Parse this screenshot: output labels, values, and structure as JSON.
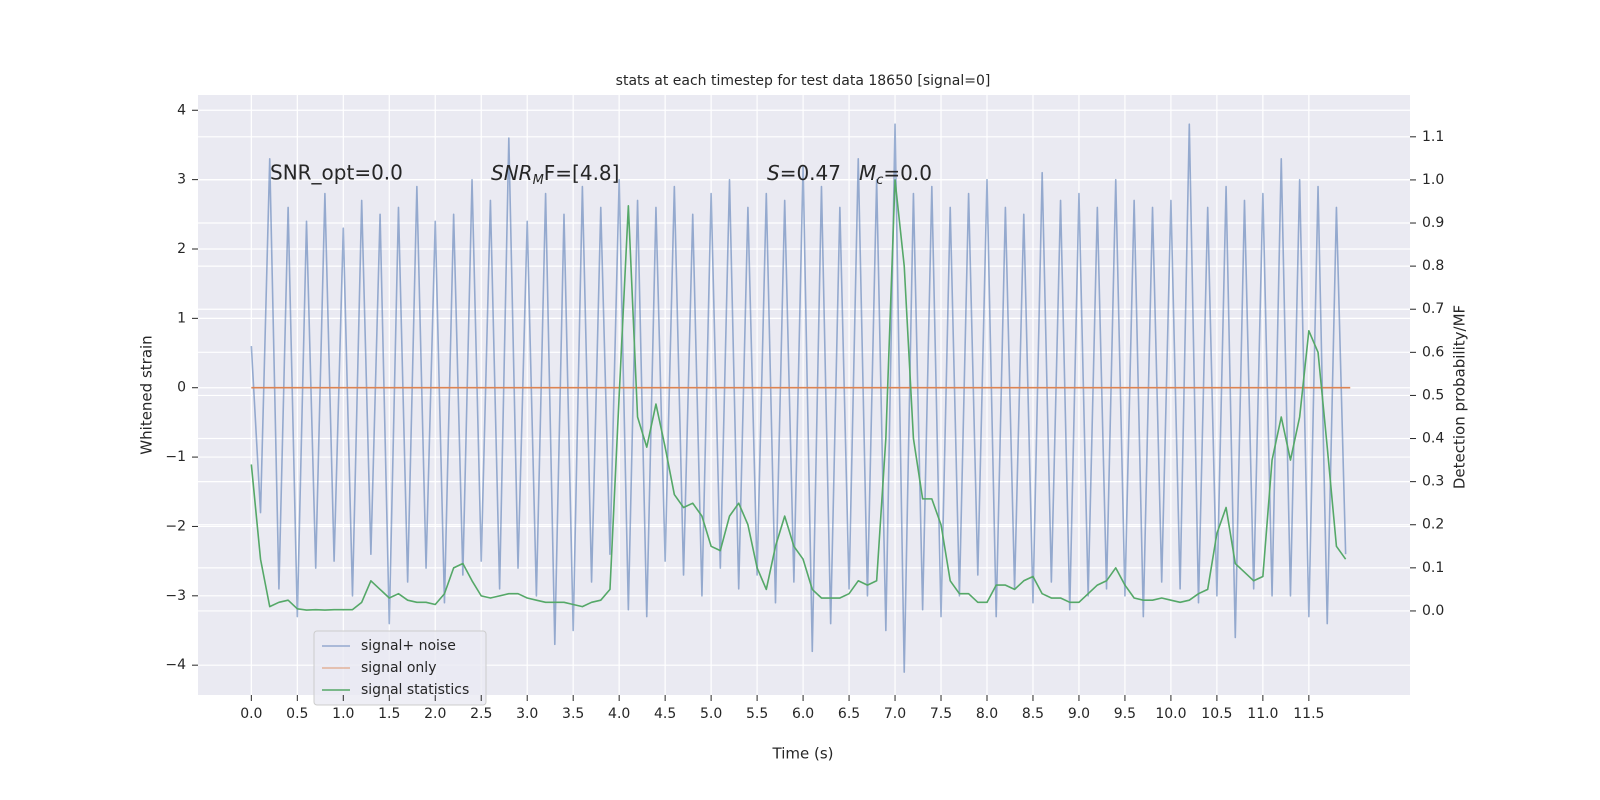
{
  "chart_data": {
    "type": "line",
    "title": "stats at each timestep for test data 18650 [signal=0]",
    "xlabel": "Time (s)",
    "ylabel": "Whitened strain",
    "y2label": "Detection probability/MF",
    "annotations": [
      [
        "SNR_opt=0.0"
      ],
      [
        "SNR",
        "M",
        "F=[4.8]"
      ],
      [
        "S",
        "=0.47"
      ],
      [
        "M",
        "c",
        "=0.0"
      ]
    ],
    "grid": true,
    "legend": "lower left",
    "xlim": [
      -0.58,
      12.6
    ],
    "ylim": [
      -4.43,
      4.22
    ],
    "y2lim": [
      -0.195,
      1.197
    ],
    "xticks": [
      {
        "value": 0,
        "label": "0.0"
      },
      {
        "value": 0.5,
        "label": "0.5"
      },
      {
        "value": 1,
        "label": "1.0"
      },
      {
        "value": 1.5,
        "label": "1.5"
      },
      {
        "value": 2,
        "label": "2.0"
      },
      {
        "value": 2.5,
        "label": "2.5"
      },
      {
        "value": 3,
        "label": "3.0"
      },
      {
        "value": 3.5,
        "label": "3.5"
      },
      {
        "value": 4,
        "label": "4.0"
      },
      {
        "value": 4.5,
        "label": "4.5"
      },
      {
        "value": 5,
        "label": "5.0"
      },
      {
        "value": 5.5,
        "label": "5.5"
      },
      {
        "value": 6,
        "label": "6.0"
      },
      {
        "value": 6.5,
        "label": "6.5"
      },
      {
        "value": 7,
        "label": "7.0"
      },
      {
        "value": 7.5,
        "label": "7.5"
      },
      {
        "value": 8,
        "label": "8.0"
      },
      {
        "value": 8.5,
        "label": "8.5"
      },
      {
        "value": 9,
        "label": "9.0"
      },
      {
        "value": 9.5,
        "label": "9.5"
      },
      {
        "value": 10,
        "label": "10.0"
      },
      {
        "value": 10.5,
        "label": "10.5"
      },
      {
        "value": 11,
        "label": "11.0"
      },
      {
        "value": 11.5,
        "label": "11.5"
      }
    ],
    "yticks": [
      {
        "value": -4,
        "label": "−4"
      },
      {
        "value": -3,
        "label": "−3"
      },
      {
        "value": -2,
        "label": "−2"
      },
      {
        "value": -1,
        "label": "−1"
      },
      0,
      1,
      2,
      3,
      4
    ],
    "y2ticks": [
      {
        "value": 0,
        "label": "0.0"
      },
      {
        "value": 0.1,
        "label": "0.1"
      },
      {
        "value": 0.2,
        "label": "0.2"
      },
      {
        "value": 0.3,
        "label": "0.3"
      },
      {
        "value": 0.4,
        "label": "0.4"
      },
      {
        "value": 0.5,
        "label": "0.5"
      },
      {
        "value": 0.6,
        "label": "0.6"
      },
      {
        "value": 0.7,
        "label": "0.7"
      },
      {
        "value": 0.8,
        "label": "0.8"
      },
      {
        "value": 0.9,
        "label": "0.9"
      },
      {
        "value": 1,
        "label": "1.0"
      },
      {
        "value": 1.1,
        "label": "1.1"
      }
    ],
    "series": [
      {
        "name": "signal+ noise",
        "color": "#4c72b0",
        "x": [
          0,
          0.1,
          0.2,
          0.3,
          0.4,
          0.5,
          0.6,
          0.7,
          0.8,
          0.9,
          1,
          1.1,
          1.2,
          1.3,
          1.4,
          1.5,
          1.6,
          1.7,
          1.8,
          1.9,
          2,
          2.1,
          2.2,
          2.3,
          2.4,
          2.5,
          2.6,
          2.7,
          2.8,
          2.9,
          3,
          3.1,
          3.2,
          3.3,
          3.4,
          3.5,
          3.6,
          3.7,
          3.8,
          3.9,
          4,
          4.1,
          4.2,
          4.3,
          4.4,
          4.5,
          4.6,
          4.7,
          4.8,
          4.9,
          5,
          5.1,
          5.2,
          5.3,
          5.4,
          5.5,
          5.6,
          5.7,
          5.8,
          5.9,
          6,
          6.1,
          6.2,
          6.3,
          6.4,
          6.5,
          6.6,
          6.7,
          6.8,
          6.9,
          7,
          7.1,
          7.2,
          7.3,
          7.4,
          7.5,
          7.6,
          7.7,
          7.8,
          7.9,
          8,
          8.1,
          8.2,
          8.3,
          8.4,
          8.5,
          8.6,
          8.7,
          8.8,
          8.9,
          9,
          9.1,
          9.2,
          9.3,
          9.4,
          9.5,
          9.6,
          9.7,
          9.8,
          9.9,
          10,
          10.1,
          10.2,
          10.3,
          10.4,
          10.5,
          10.6,
          10.7,
          10.8,
          10.9,
          11,
          11.1,
          11.2,
          11.3,
          11.4,
          11.5,
          11.6,
          11.7,
          11.8,
          11.9
        ],
        "values": [
          0.6,
          -1.8,
          3.3,
          -2.9,
          2.6,
          -3.3,
          2.4,
          -2.6,
          2.8,
          -2.5,
          2.3,
          -3.0,
          2.7,
          -2.4,
          2.5,
          -3.4,
          2.6,
          -2.8,
          2.9,
          -2.6,
          2.4,
          -3.1,
          2.5,
          -2.7,
          3.0,
          -2.5,
          2.7,
          -2.9,
          3.6,
          -2.6,
          2.4,
          -3.0,
          2.8,
          -3.7,
          2.5,
          -3.5,
          2.9,
          -2.8,
          2.6,
          -2.4,
          3.0,
          -3.2,
          2.7,
          -3.3,
          2.6,
          -2.5,
          2.9,
          -2.7,
          2.5,
          -3.0,
          2.8,
          -2.6,
          3.0,
          -2.9,
          2.6,
          -2.7,
          2.8,
          -3.1,
          2.7,
          -2.8,
          3.2,
          -3.8,
          2.9,
          -3.4,
          2.6,
          -2.9,
          3.3,
          -3.0,
          3.0,
          -3.5,
          3.8,
          -4.1,
          2.8,
          -3.2,
          2.9,
          -3.3,
          2.6,
          -3.0,
          2.8,
          -2.7,
          3.0,
          -3.3,
          2.6,
          -2.9,
          2.5,
          -3.1,
          3.1,
          -2.8,
          2.7,
          -3.2,
          2.8,
          -3.0,
          2.6,
          -2.9,
          3.0,
          -3.0,
          2.7,
          -3.3,
          2.6,
          -2.8,
          2.7,
          -2.9,
          3.8,
          -3.1,
          2.6,
          -3.0,
          2.9,
          -3.6,
          2.7,
          -2.9,
          2.8,
          -3.0,
          3.3,
          -3.0,
          3.0,
          -3.3,
          2.9,
          -3.4,
          2.6,
          -2.4
        ]
      },
      {
        "name": "signal only",
        "color": "#dd8452",
        "x": [
          0,
          11.95
        ],
        "values": [
          0,
          0
        ]
      },
      {
        "name": "signal statistics",
        "color": "#55a868",
        "axis": "y2",
        "x": [
          0,
          0.1,
          0.2,
          0.3,
          0.4,
          0.5,
          0.6,
          0.7,
          0.8,
          0.9,
          1,
          1.1,
          1.2,
          1.3,
          1.4,
          1.5,
          1.6,
          1.7,
          1.8,
          1.9,
          2,
          2.1,
          2.2,
          2.3,
          2.4,
          2.5,
          2.6,
          2.7,
          2.8,
          2.9,
          3,
          3.1,
          3.2,
          3.3,
          3.4,
          3.5,
          3.6,
          3.7,
          3.8,
          3.9,
          4,
          4.1,
          4.2,
          4.3,
          4.4,
          4.5,
          4.6,
          4.7,
          4.8,
          4.9,
          5,
          5.1,
          5.2,
          5.3,
          5.4,
          5.5,
          5.6,
          5.7,
          5.8,
          5.9,
          6,
          6.1,
          6.2,
          6.3,
          6.4,
          6.5,
          6.6,
          6.7,
          6.8,
          6.9,
          7,
          7.1,
          7.2,
          7.3,
          7.4,
          7.5,
          7.6,
          7.7,
          7.8,
          7.9,
          8,
          8.1,
          8.2,
          8.3,
          8.4,
          8.5,
          8.6,
          8.7,
          8.8,
          8.9,
          9,
          9.1,
          9.2,
          9.3,
          9.4,
          9.5,
          9.6,
          9.7,
          9.8,
          9.9,
          10,
          10.1,
          10.2,
          10.3,
          10.4,
          10.5,
          10.6,
          10.7,
          10.8,
          10.9,
          11,
          11.1,
          11.2,
          11.3,
          11.4,
          11.5,
          11.6,
          11.7,
          11.8,
          11.9
        ],
        "values": [
          0.34,
          0.12,
          0.01,
          0.02,
          0.025,
          0.005,
          0.002,
          0.003,
          0.002,
          0.003,
          0.003,
          0.003,
          0.02,
          0.07,
          0.05,
          0.03,
          0.04,
          0.025,
          0.02,
          0.02,
          0.015,
          0.04,
          0.1,
          0.11,
          0.07,
          0.035,
          0.03,
          0.035,
          0.04,
          0.04,
          0.03,
          0.025,
          0.02,
          0.02,
          0.02,
          0.015,
          0.01,
          0.02,
          0.025,
          0.05,
          0.5,
          0.94,
          0.45,
          0.38,
          0.48,
          0.38,
          0.27,
          0.24,
          0.25,
          0.22,
          0.15,
          0.14,
          0.22,
          0.25,
          0.2,
          0.1,
          0.05,
          0.15,
          0.22,
          0.15,
          0.12,
          0.05,
          0.03,
          0.03,
          0.03,
          0.04,
          0.07,
          0.06,
          0.07,
          0.4,
          1.0,
          0.8,
          0.4,
          0.26,
          0.26,
          0.2,
          0.07,
          0.04,
          0.04,
          0.02,
          0.02,
          0.06,
          0.06,
          0.05,
          0.07,
          0.08,
          0.04,
          0.03,
          0.03,
          0.02,
          0.02,
          0.04,
          0.06,
          0.07,
          0.1,
          0.06,
          0.03,
          0.025,
          0.025,
          0.03,
          0.025,
          0.02,
          0.025,
          0.04,
          0.05,
          0.18,
          0.24,
          0.11,
          0.09,
          0.07,
          0.08,
          0.35,
          0.45,
          0.35,
          0.45,
          0.65,
          0.6,
          0.38,
          0.15,
          0.12
        ]
      }
    ]
  }
}
